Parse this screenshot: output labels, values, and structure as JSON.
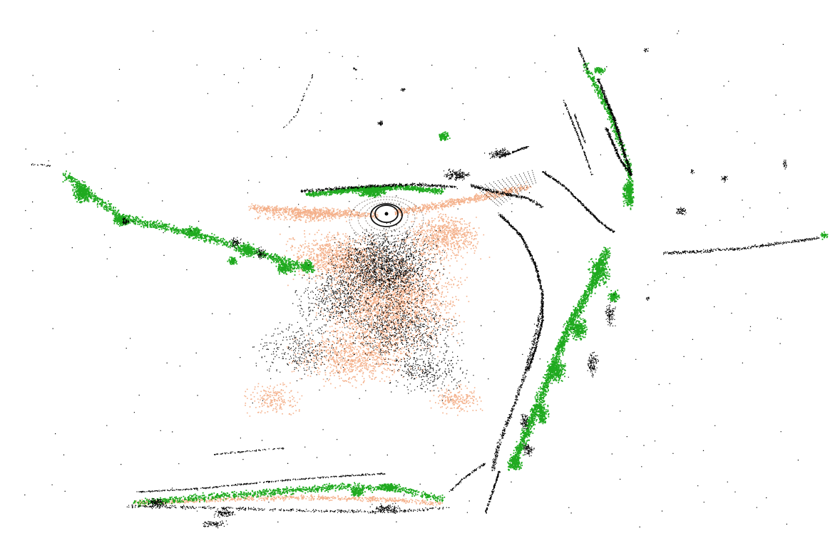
{
  "scene": {
    "colors": {
      "background": "#ffffff",
      "ground": "#f4b08a",
      "vegetation": "#1faa1f",
      "structure": "#000000"
    },
    "layers": [
      "ground-points",
      "vegetation-points",
      "structure-points",
      "sensor-rings"
    ]
  }
}
